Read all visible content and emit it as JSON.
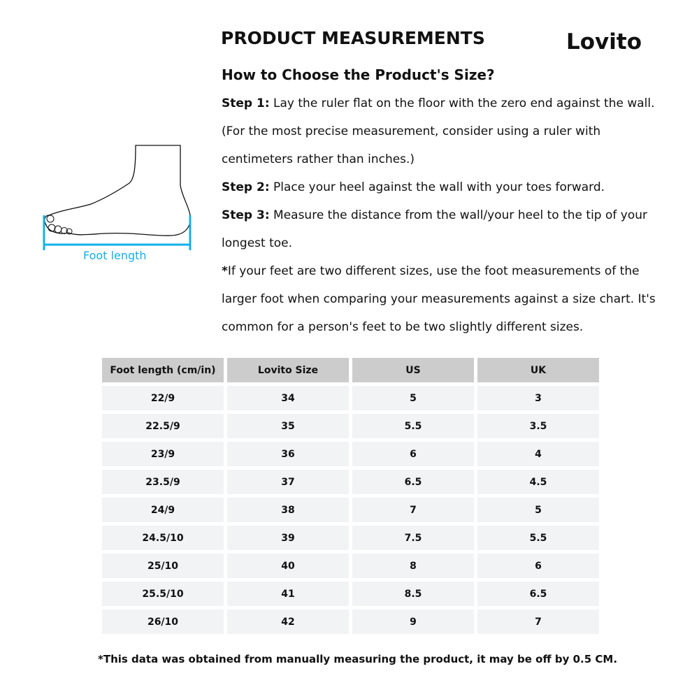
{
  "header": {
    "title": "PRODUCT MEASUREMENTS",
    "logo": "Lovito"
  },
  "guide": {
    "subtitle": "How to Choose the Product's Size?",
    "steps": [
      {
        "label": "Step 1:",
        "text": " Lay the ruler flat on the floor with the zero end against the wall. (For the most precise measurement, consider using a ruler with centimeters rather than inches.)"
      },
      {
        "label": "Step 2:",
        "text": " Place your heel against the wall with your toes forward."
      },
      {
        "label": "Step 3:",
        "text": " Measure the distance from the wall/your heel to the tip of your longest toe."
      },
      {
        "label": "*",
        "text": "If your feet are two different sizes, use the foot measurements of the larger foot when comparing your measurements against a size chart. It's common for a person's feet to be two slightly different sizes."
      }
    ]
  },
  "illustration": {
    "label": "Foot length",
    "accent": "#12b0e8"
  },
  "table": {
    "headers": [
      "Foot length (cm/in)",
      "Lovito Size",
      "US",
      "UK"
    ],
    "rows": [
      [
        "22/9",
        "34",
        "5",
        "3"
      ],
      [
        "22.5/9",
        "35",
        "5.5",
        "3.5"
      ],
      [
        "23/9",
        "36",
        "6",
        "4"
      ],
      [
        "23.5/9",
        "37",
        "6.5",
        "4.5"
      ],
      [
        "24/9",
        "38",
        "7",
        "5"
      ],
      [
        "24.5/10",
        "39",
        "7.5",
        "5.5"
      ],
      [
        "25/10",
        "40",
        "8",
        "6"
      ],
      [
        "25.5/10",
        "41",
        "8.5",
        "6.5"
      ],
      [
        "26/10",
        "42",
        "9",
        "7"
      ]
    ]
  },
  "footnote": "*This data was obtained from manually measuring the product, it may be off by 0.5 CM."
}
